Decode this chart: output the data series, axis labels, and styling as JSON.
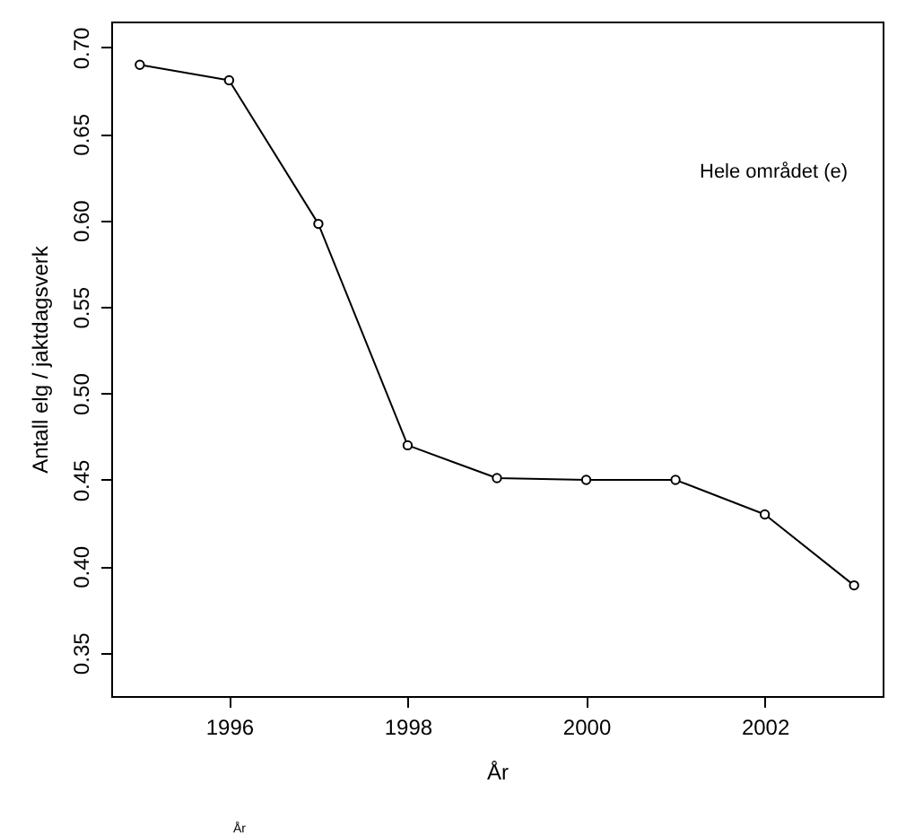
{
  "chart_data": {
    "type": "line",
    "xlabel": "År",
    "ylabel": "Antall elg / jaktdagsverk",
    "x": [
      1995,
      1996,
      1997,
      1998,
      1999,
      2000,
      2001,
      2002,
      2003
    ],
    "series": [
      {
        "color": "#000000",
        "values": [
          0.69,
          0.681,
          0.598,
          0.47,
          0.451,
          0.45,
          0.45,
          0.43,
          0.389
        ]
      }
    ],
    "xlim": [
      1994.68,
      2003.32
    ],
    "xticks": [
      1996,
      1998,
      2000,
      2002
    ],
    "ylim": [
      0.325,
      0.715
    ],
    "yticks": [
      0.35,
      {
        "value": 0.4,
        "label": "0.40"
      },
      0.45,
      {
        "value": 0.5,
        "label": "0.50"
      },
      0.55,
      {
        "value": 0.6,
        "label": "0.60"
      },
      0.65,
      {
        "value": 0.7,
        "label": "0.70"
      }
    ],
    "marker": "circle",
    "line_style": "solid",
    "grid": false,
    "annotations": [
      "Hele området (e)",
      "År"
    ]
  }
}
